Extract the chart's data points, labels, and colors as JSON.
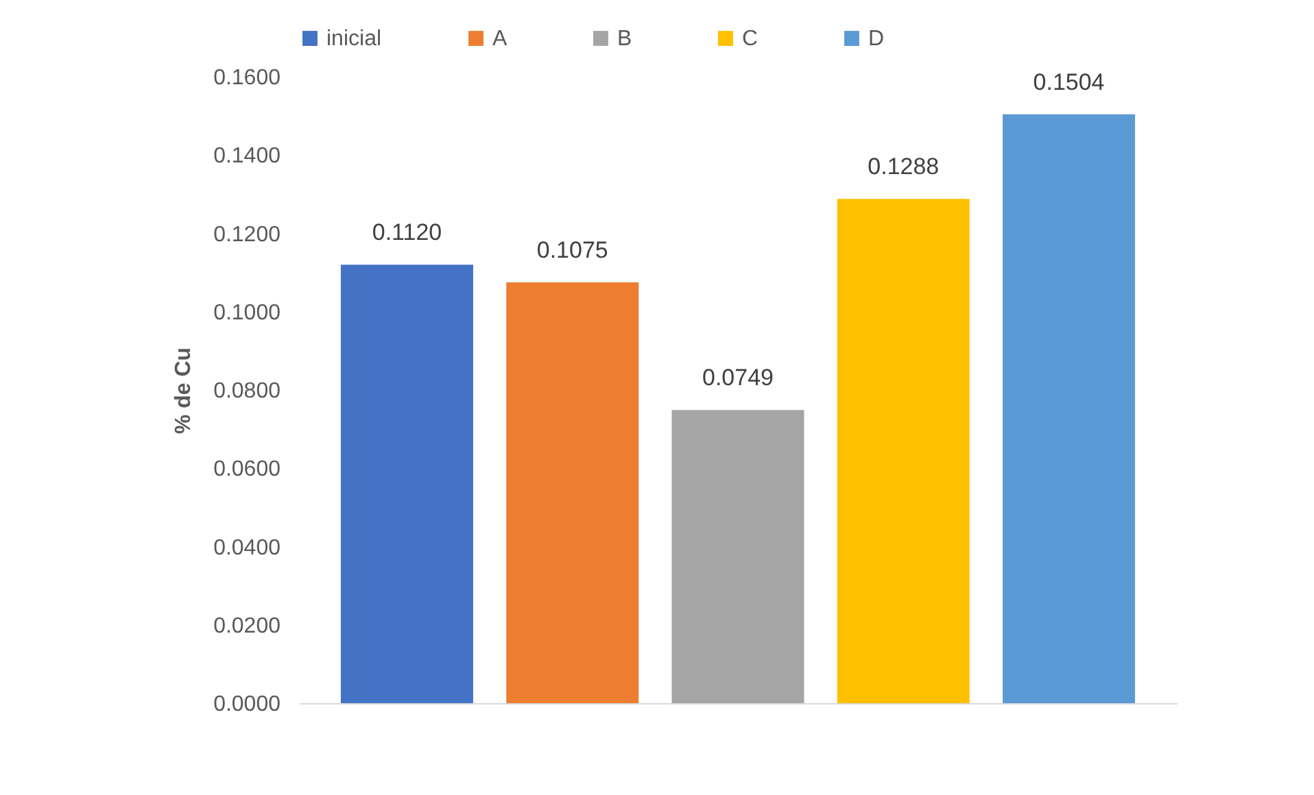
{
  "chart_data": {
    "type": "bar",
    "ylabel": "% de Cu",
    "categories": [
      null
    ],
    "series": [
      {
        "name": "inicial",
        "color": "#4472c4",
        "values": [
          0.112
        ],
        "value_labels": [
          "0.1120"
        ]
      },
      {
        "name": "A",
        "color": "#ed7d31",
        "values": [
          0.1075
        ],
        "value_labels": [
          "0.1075"
        ]
      },
      {
        "name": "B",
        "color": "#a5a5a5",
        "values": [
          0.0749
        ],
        "value_labels": [
          "0.0749"
        ]
      },
      {
        "name": "C",
        "color": "#ffc000",
        "values": [
          0.1288
        ],
        "value_labels": [
          "0.1288"
        ]
      },
      {
        "name": "D",
        "color": "#5b9bd5",
        "values": [
          0.1504
        ],
        "value_labels": [
          "0.1504"
        ]
      }
    ],
    "ylim": [
      0,
      0.16
    ],
    "yticks": [
      {
        "value": 0,
        "label": "0.0000"
      },
      {
        "value": 0.02,
        "label": "0.0200"
      },
      {
        "value": 0.04,
        "label": "0.0400"
      },
      {
        "value": 0.06,
        "label": "0.0600"
      },
      {
        "value": 0.08,
        "label": "0.0800"
      },
      {
        "value": 0.1,
        "label": "0.1000"
      },
      {
        "value": 0.12,
        "label": "0.1200"
      },
      {
        "value": 0.14,
        "label": "0.1400"
      },
      {
        "value": 0.16,
        "label": "0.1600"
      }
    ],
    "grid": false,
    "legend": "top"
  }
}
